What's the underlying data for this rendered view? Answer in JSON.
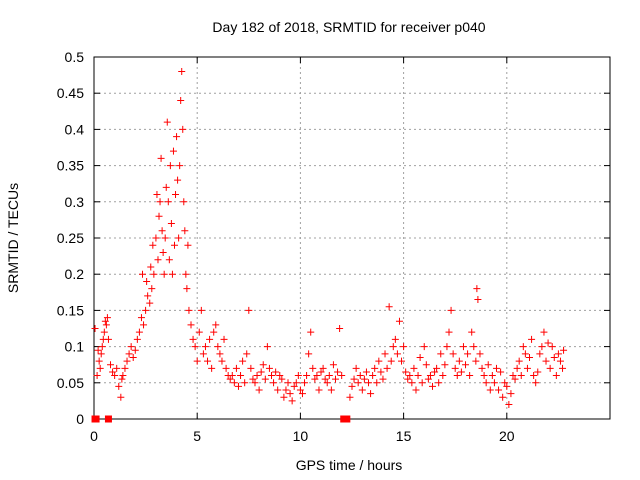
{
  "chart_data": {
    "type": "scatter",
    "title": "Day 182 of 2018, SRMTID for receiver p040",
    "xlabel": "GPS time / hours",
    "ylabel": "SRMTID / TECUs",
    "xlim": [
      0,
      25
    ],
    "ylim": [
      0,
      0.5
    ],
    "xticks": [
      0,
      5,
      10,
      15,
      20
    ],
    "xtick_labels": [
      "0",
      "5",
      "10",
      "15",
      "20"
    ],
    "yticks": [
      0,
      0.05,
      0.1,
      0.15,
      0.2,
      0.25,
      0.3,
      0.35,
      0.4,
      0.45,
      0.5
    ],
    "ytick_labels": [
      "0",
      "0.05",
      "0.1",
      "0.15",
      "0.2",
      "0.25",
      "0.3",
      "0.35",
      "0.4",
      "0.45",
      "0.5"
    ],
    "grid": true,
    "marker": "plus",
    "color": "#ff0000",
    "zero_markers_x": [
      0.05,
      0.1,
      0.7,
      12.1,
      12.25
    ],
    "series": [
      {
        "name": "SRMTID",
        "points": [
          [
            0.05,
            0.125
          ],
          [
            0.15,
            0.06
          ],
          [
            0.2,
            0.095
          ],
          [
            0.25,
            0.08
          ],
          [
            0.3,
            0.07
          ],
          [
            0.35,
            0.09
          ],
          [
            0.4,
            0.1
          ],
          [
            0.45,
            0.11
          ],
          [
            0.5,
            0.12
          ],
          [
            0.55,
            0.135
          ],
          [
            0.6,
            0.13
          ],
          [
            0.65,
            0.14
          ],
          [
            0.7,
            0.11
          ],
          [
            0.8,
            0.075
          ],
          [
            0.9,
            0.065
          ],
          [
            1.0,
            0.06
          ],
          [
            1.1,
            0.07
          ],
          [
            1.2,
            0.045
          ],
          [
            1.3,
            0.03
          ],
          [
            1.35,
            0.055
          ],
          [
            1.4,
            0.06
          ],
          [
            1.5,
            0.07
          ],
          [
            1.6,
            0.08
          ],
          [
            1.7,
            0.09
          ],
          [
            1.8,
            0.1
          ],
          [
            1.9,
            0.085
          ],
          [
            2.0,
            0.095
          ],
          [
            2.1,
            0.11
          ],
          [
            2.2,
            0.12
          ],
          [
            2.3,
            0.14
          ],
          [
            2.35,
            0.2
          ],
          [
            2.4,
            0.13
          ],
          [
            2.5,
            0.15
          ],
          [
            2.55,
            0.19
          ],
          [
            2.6,
            0.17
          ],
          [
            2.7,
            0.16
          ],
          [
            2.75,
            0.21
          ],
          [
            2.8,
            0.18
          ],
          [
            2.85,
            0.24
          ],
          [
            2.9,
            0.2
          ],
          [
            3.0,
            0.25
          ],
          [
            3.05,
            0.31
          ],
          [
            3.1,
            0.22
          ],
          [
            3.15,
            0.28
          ],
          [
            3.2,
            0.3
          ],
          [
            3.25,
            0.36
          ],
          [
            3.3,
            0.26
          ],
          [
            3.35,
            0.23
          ],
          [
            3.4,
            0.2
          ],
          [
            3.45,
            0.25
          ],
          [
            3.5,
            0.32
          ],
          [
            3.55,
            0.41
          ],
          [
            3.6,
            0.3
          ],
          [
            3.65,
            0.22
          ],
          [
            3.7,
            0.35
          ],
          [
            3.75,
            0.27
          ],
          [
            3.8,
            0.2
          ],
          [
            3.85,
            0.37
          ],
          [
            3.9,
            0.24
          ],
          [
            3.95,
            0.31
          ],
          [
            4.0,
            0.39
          ],
          [
            4.05,
            0.33
          ],
          [
            4.1,
            0.25
          ],
          [
            4.15,
            0.35
          ],
          [
            4.2,
            0.44
          ],
          [
            4.25,
            0.48
          ],
          [
            4.3,
            0.4
          ],
          [
            4.35,
            0.3
          ],
          [
            4.4,
            0.26
          ],
          [
            4.45,
            0.2
          ],
          [
            4.5,
            0.18
          ],
          [
            4.55,
            0.24
          ],
          [
            4.6,
            0.15
          ],
          [
            4.7,
            0.13
          ],
          [
            4.8,
            0.11
          ],
          [
            4.9,
            0.1
          ],
          [
            5.0,
            0.08
          ],
          [
            5.1,
            0.12
          ],
          [
            5.2,
            0.15
          ],
          [
            5.3,
            0.09
          ],
          [
            5.4,
            0.1
          ],
          [
            5.5,
            0.08
          ],
          [
            5.6,
            0.11
          ],
          [
            5.7,
            0.07
          ],
          [
            5.8,
            0.12
          ],
          [
            5.9,
            0.13
          ],
          [
            6.0,
            0.1
          ],
          [
            6.1,
            0.09
          ],
          [
            6.2,
            0.08
          ],
          [
            6.3,
            0.11
          ],
          [
            6.4,
            0.07
          ],
          [
            6.5,
            0.06
          ],
          [
            6.6,
            0.055
          ],
          [
            6.7,
            0.06
          ],
          [
            6.8,
            0.05
          ],
          [
            6.9,
            0.07
          ],
          [
            7.0,
            0.045
          ],
          [
            7.1,
            0.06
          ],
          [
            7.2,
            0.08
          ],
          [
            7.3,
            0.05
          ],
          [
            7.4,
            0.09
          ],
          [
            7.5,
            0.15
          ],
          [
            7.6,
            0.07
          ],
          [
            7.7,
            0.055
          ],
          [
            7.8,
            0.05
          ],
          [
            7.9,
            0.06
          ],
          [
            8.0,
            0.04
          ],
          [
            8.1,
            0.065
          ],
          [
            8.2,
            0.075
          ],
          [
            8.3,
            0.055
          ],
          [
            8.4,
            0.1
          ],
          [
            8.5,
            0.07
          ],
          [
            8.6,
            0.06
          ],
          [
            8.7,
            0.05
          ],
          [
            8.8,
            0.065
          ],
          [
            8.9,
            0.04
          ],
          [
            9.0,
            0.06
          ],
          [
            9.1,
            0.055
          ],
          [
            9.2,
            0.03
          ],
          [
            9.3,
            0.04
          ],
          [
            9.4,
            0.05
          ],
          [
            9.5,
            0.035
          ],
          [
            9.6,
            0.025
          ],
          [
            9.7,
            0.045
          ],
          [
            9.8,
            0.05
          ],
          [
            9.9,
            0.06
          ],
          [
            10.0,
            0.04
          ],
          [
            10.1,
            0.035
          ],
          [
            10.2,
            0.05
          ],
          [
            10.3,
            0.06
          ],
          [
            10.4,
            0.09
          ],
          [
            10.5,
            0.12
          ],
          [
            10.6,
            0.07
          ],
          [
            10.7,
            0.055
          ],
          [
            10.8,
            0.06
          ],
          [
            10.9,
            0.04
          ],
          [
            11.0,
            0.065
          ],
          [
            11.1,
            0.07
          ],
          [
            11.2,
            0.055
          ],
          [
            11.3,
            0.05
          ],
          [
            11.4,
            0.06
          ],
          [
            11.5,
            0.04
          ],
          [
            11.6,
            0.075
          ],
          [
            11.7,
            0.055
          ],
          [
            11.8,
            0.065
          ],
          [
            11.9,
            0.125
          ],
          [
            12.0,
            0.06
          ],
          [
            12.4,
            0.03
          ],
          [
            12.5,
            0.045
          ],
          [
            12.6,
            0.055
          ],
          [
            12.7,
            0.07
          ],
          [
            12.8,
            0.05
          ],
          [
            12.9,
            0.06
          ],
          [
            13.0,
            0.04
          ],
          [
            13.1,
            0.055
          ],
          [
            13.2,
            0.065
          ],
          [
            13.3,
            0.05
          ],
          [
            13.4,
            0.035
          ],
          [
            13.5,
            0.06
          ],
          [
            13.6,
            0.07
          ],
          [
            13.7,
            0.05
          ],
          [
            13.8,
            0.08
          ],
          [
            13.9,
            0.065
          ],
          [
            14.0,
            0.055
          ],
          [
            14.1,
            0.09
          ],
          [
            14.2,
            0.07
          ],
          [
            14.3,
            0.155
          ],
          [
            14.4,
            0.08
          ],
          [
            14.5,
            0.1
          ],
          [
            14.6,
            0.11
          ],
          [
            14.7,
            0.09
          ],
          [
            14.8,
            0.135
          ],
          [
            14.9,
            0.08
          ],
          [
            15.0,
            0.1
          ],
          [
            15.1,
            0.065
          ],
          [
            15.2,
            0.055
          ],
          [
            15.3,
            0.06
          ],
          [
            15.4,
            0.05
          ],
          [
            15.5,
            0.07
          ],
          [
            15.6,
            0.04
          ],
          [
            15.7,
            0.06
          ],
          [
            15.8,
            0.085
          ],
          [
            15.9,
            0.05
          ],
          [
            16.0,
            0.1
          ],
          [
            16.1,
            0.075
          ],
          [
            16.2,
            0.055
          ],
          [
            16.3,
            0.06
          ],
          [
            16.4,
            0.045
          ],
          [
            16.5,
            0.065
          ],
          [
            16.6,
            0.07
          ],
          [
            16.7,
            0.05
          ],
          [
            16.8,
            0.09
          ],
          [
            16.9,
            0.06
          ],
          [
            17.0,
            0.075
          ],
          [
            17.1,
            0.1
          ],
          [
            17.2,
            0.12
          ],
          [
            17.3,
            0.15
          ],
          [
            17.4,
            0.09
          ],
          [
            17.5,
            0.07
          ],
          [
            17.6,
            0.06
          ],
          [
            17.7,
            0.08
          ],
          [
            17.8,
            0.065
          ],
          [
            17.9,
            0.1
          ],
          [
            18.0,
            0.075
          ],
          [
            18.1,
            0.09
          ],
          [
            18.2,
            0.06
          ],
          [
            18.3,
            0.12
          ],
          [
            18.4,
            0.1
          ],
          [
            18.5,
            0.08
          ],
          [
            18.55,
            0.18
          ],
          [
            18.6,
            0.165
          ],
          [
            18.7,
            0.09
          ],
          [
            18.8,
            0.07
          ],
          [
            18.9,
            0.06
          ],
          [
            19.0,
            0.05
          ],
          [
            19.1,
            0.075
          ],
          [
            19.2,
            0.04
          ],
          [
            19.3,
            0.06
          ],
          [
            19.4,
            0.05
          ],
          [
            19.5,
            0.07
          ],
          [
            19.6,
            0.04
          ],
          [
            19.7,
            0.065
          ],
          [
            19.8,
            0.03
          ],
          [
            19.9,
            0.05
          ],
          [
            20.0,
            0.045
          ],
          [
            20.1,
            0.02
          ],
          [
            20.2,
            0.035
          ],
          [
            20.3,
            0.06
          ],
          [
            20.4,
            0.055
          ],
          [
            20.5,
            0.07
          ],
          [
            20.6,
            0.08
          ],
          [
            20.7,
            0.06
          ],
          [
            20.8,
            0.1
          ],
          [
            20.9,
            0.09
          ],
          [
            21.0,
            0.07
          ],
          [
            21.1,
            0.085
          ],
          [
            21.2,
            0.11
          ],
          [
            21.3,
            0.06
          ],
          [
            21.4,
            0.05
          ],
          [
            21.5,
            0.065
          ],
          [
            21.6,
            0.09
          ],
          [
            21.7,
            0.1
          ],
          [
            21.8,
            0.12
          ],
          [
            21.9,
            0.08
          ],
          [
            22.0,
            0.105
          ],
          [
            22.1,
            0.07
          ],
          [
            22.2,
            0.1
          ],
          [
            22.3,
            0.085
          ],
          [
            22.4,
            0.06
          ],
          [
            22.5,
            0.09
          ],
          [
            22.6,
            0.08
          ],
          [
            22.7,
            0.07
          ],
          [
            22.75,
            0.095
          ]
        ]
      }
    ]
  }
}
